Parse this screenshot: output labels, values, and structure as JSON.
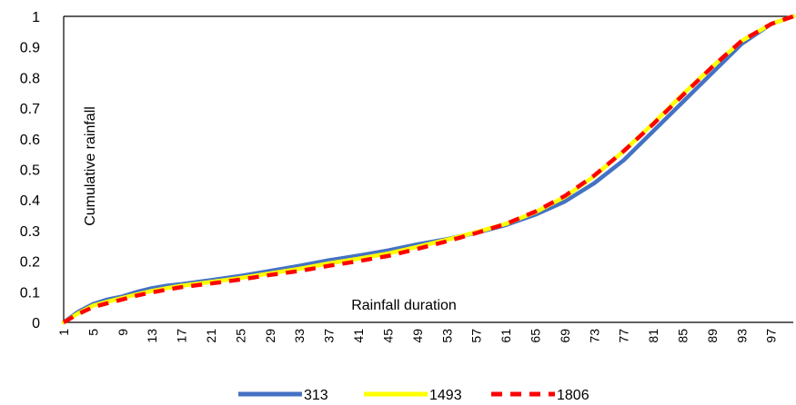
{
  "chart_data": {
    "type": "line",
    "title": "",
    "xlabel": "Rainfall duration",
    "ylabel": "Cumulative rainfall",
    "ylim": [
      0,
      1
    ],
    "xlim": [
      1,
      100
    ],
    "yticks": [
      "0",
      "0.1",
      "0.2",
      "0.3",
      "0.4",
      "0.5",
      "0.6",
      "0.7",
      "0.8",
      "0.9",
      "1"
    ],
    "xticks": [
      "1",
      "5",
      "9",
      "13",
      "17",
      "21",
      "25",
      "29",
      "33",
      "37",
      "41",
      "45",
      "49",
      "53",
      "57",
      "61",
      "65",
      "69",
      "73",
      "77",
      "81",
      "85",
      "89",
      "93",
      "97"
    ],
    "grid": false,
    "legend_position": "bottom",
    "x": [
      1,
      3,
      5,
      7,
      9,
      11,
      13,
      15,
      17,
      21,
      25,
      29,
      33,
      37,
      41,
      45,
      49,
      53,
      57,
      61,
      65,
      69,
      73,
      77,
      81,
      85,
      89,
      93,
      97,
      100
    ],
    "series": [
      {
        "name": "313",
        "color": "#4472C4",
        "style": "solid",
        "values": [
          0,
          0.035,
          0.06,
          0.075,
          0.085,
          0.1,
          0.112,
          0.12,
          0.125,
          0.138,
          0.152,
          0.168,
          0.185,
          0.203,
          0.218,
          0.235,
          0.255,
          0.272,
          0.293,
          0.318,
          0.352,
          0.395,
          0.455,
          0.53,
          0.625,
          0.72,
          0.815,
          0.91,
          0.975,
          1.0
        ]
      },
      {
        "name": "1493",
        "color": "#FFFF00",
        "style": "solid",
        "values": [
          0,
          0.03,
          0.055,
          0.068,
          0.08,
          0.092,
          0.103,
          0.112,
          0.12,
          0.132,
          0.145,
          0.16,
          0.175,
          0.193,
          0.208,
          0.225,
          0.247,
          0.27,
          0.295,
          0.322,
          0.36,
          0.41,
          0.478,
          0.56,
          0.65,
          0.745,
          0.835,
          0.92,
          0.975,
          1.0
        ]
      },
      {
        "name": "1806",
        "color": "#FF0000",
        "style": "dashed",
        "values": [
          0,
          0.028,
          0.05,
          0.063,
          0.075,
          0.088,
          0.098,
          0.107,
          0.115,
          0.127,
          0.14,
          0.155,
          0.168,
          0.185,
          0.2,
          0.217,
          0.24,
          0.265,
          0.292,
          0.322,
          0.362,
          0.413,
          0.48,
          0.56,
          0.648,
          0.742,
          0.835,
          0.92,
          0.975,
          1.0
        ]
      }
    ]
  }
}
